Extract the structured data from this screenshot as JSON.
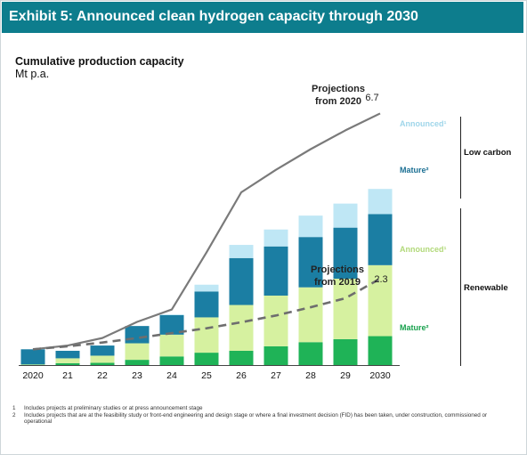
{
  "header": {
    "title": "Exhibit 5: Announced clean hydrogen capacity through 2030"
  },
  "footnotes": [
    {
      "mark": "1",
      "text": "Includes projects at preliminary studies or at press announcement stage"
    },
    {
      "mark": "2",
      "text": "Includes projects that are at the feasibility study or front-end engineering  and design stage or where a final investment decision (FID) has been taken, under construction, commissioned or operational"
    }
  ],
  "colors": {
    "title_bar": "#0d7d8d",
    "renewable_mature": "#1fb357",
    "renewable_announced": "#d6f1a0",
    "low_carbon_mature": "#1b7ea3",
    "low_carbon_announced": "#bfe7f5",
    "projection_2020": "#7a7a7a",
    "projection_2019": "#6e6e6e"
  },
  "chart_data": {
    "type": "bar",
    "stacked": true,
    "title": "Cumulative production capacity",
    "ylabel": "Mt p.a.",
    "ylim": [
      0,
      6.9
    ],
    "categories": [
      "2020",
      "21",
      "22",
      "23",
      "24",
      "25",
      "26",
      "27",
      "28",
      "29",
      "2030"
    ],
    "series": [
      {
        "key": "ren_mat",
        "group": "Renewable",
        "name": "Mature²",
        "color": "#1fb357",
        "values": [
          0.01,
          0.05,
          0.06,
          0.14,
          0.23,
          0.33,
          0.38,
          0.5,
          0.61,
          0.69,
          0.77
        ]
      },
      {
        "key": "ren_ann",
        "group": "Renewable",
        "name": "Announced¹",
        "color": "#d6f1a0",
        "values": [
          0.01,
          0.13,
          0.19,
          0.44,
          0.58,
          0.94,
          1.22,
          1.35,
          1.46,
          1.61,
          1.89
        ]
      },
      {
        "key": "lc_mat",
        "group": "Low carbon",
        "name": "Mature²",
        "color": "#1b7ea3",
        "values": [
          0.4,
          0.2,
          0.27,
          0.46,
          0.52,
          0.69,
          1.25,
          1.31,
          1.34,
          1.36,
          1.36
        ]
      },
      {
        "key": "lc_ann",
        "group": "Low carbon",
        "name": "Announced¹",
        "color": "#bfe7f5",
        "values": [
          0.0,
          0.0,
          0.0,
          0.0,
          0.02,
          0.18,
          0.35,
          0.45,
          0.57,
          0.64,
          0.67
        ]
      }
    ],
    "groups": [
      "Low carbon",
      "Renewable"
    ],
    "projections": [
      {
        "label_lines": [
          "Projections",
          "from 2020"
        ],
        "end_label": "6.7",
        "style": "solid",
        "color": "#7a7a7a",
        "values": [
          0.42,
          0.52,
          0.72,
          1.15,
          1.48,
          3.0,
          4.6,
          5.2,
          5.75,
          6.25,
          6.7
        ]
      },
      {
        "label_lines": [
          "Projections",
          "from 2019"
        ],
        "end_label": "2.3",
        "style": "dashed",
        "color": "#6e6e6e",
        "values": [
          0.42,
          0.5,
          0.6,
          0.72,
          0.85,
          0.98,
          1.14,
          1.32,
          1.54,
          1.78,
          2.3
        ]
      }
    ]
  }
}
